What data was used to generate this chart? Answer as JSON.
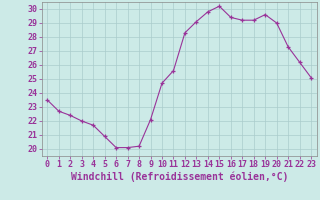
{
  "x": [
    0,
    1,
    2,
    3,
    4,
    5,
    6,
    7,
    8,
    9,
    10,
    11,
    12,
    13,
    14,
    15,
    16,
    17,
    18,
    19,
    20,
    21,
    22,
    23
  ],
  "y": [
    23.5,
    22.7,
    22.4,
    22.0,
    21.7,
    20.9,
    20.1,
    20.1,
    20.2,
    22.1,
    24.7,
    25.6,
    28.3,
    29.1,
    29.8,
    30.2,
    29.4,
    29.2,
    29.2,
    29.6,
    29.0,
    27.3,
    26.2,
    25.1
  ],
  "line_color": "#993399",
  "marker": "+",
  "marker_size": 3.5,
  "marker_color": "#993399",
  "bg_color": "#cceae7",
  "grid_color": "#aacccc",
  "xlabel": "Windchill (Refroidissement éolien,°C)",
  "xlabel_fontsize": 7,
  "ylabel_ticks": [
    20,
    21,
    22,
    23,
    24,
    25,
    26,
    27,
    28,
    29,
    30
  ],
  "xlim": [
    -0.5,
    23.5
  ],
  "ylim": [
    19.5,
    30.5
  ],
  "tick_fontsize": 6,
  "tick_color": "#993399"
}
